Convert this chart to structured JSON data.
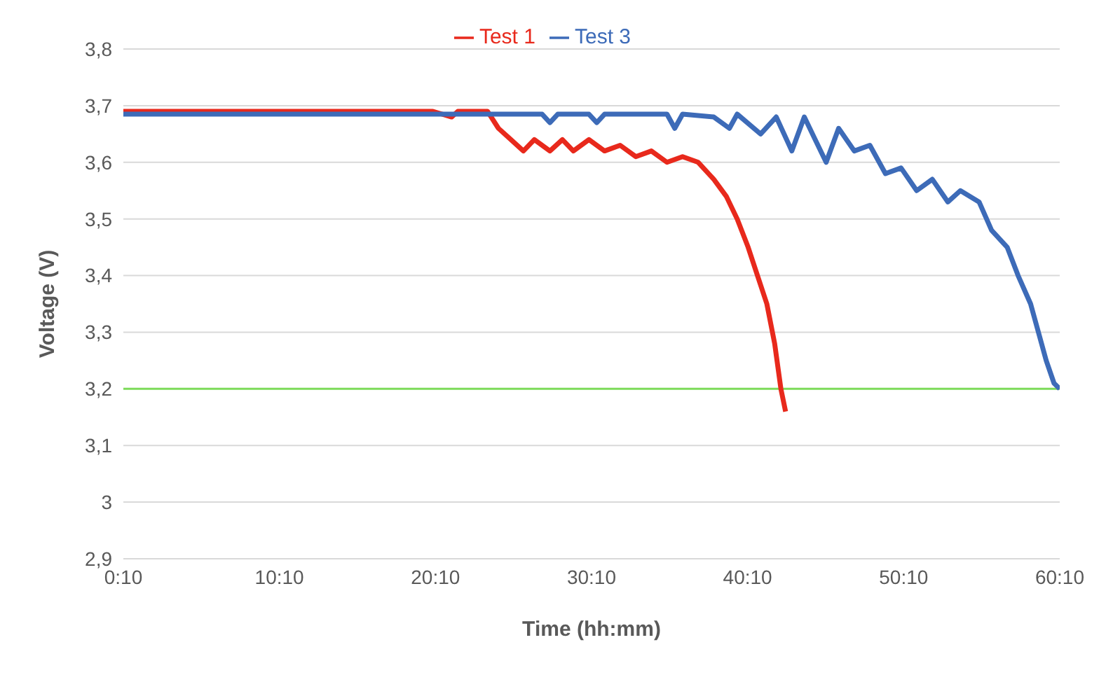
{
  "chart_data": {
    "type": "line",
    "xlabel": "Time (hh:mm)",
    "ylabel": "Voltage (V)",
    "xlim": [
      0.1667,
      60.1667
    ],
    "xticks": [
      {
        "value": 0.1667,
        "label": "0:10"
      },
      {
        "value": 10.1667,
        "label": "10:10"
      },
      {
        "value": 20.1667,
        "label": "20:10"
      },
      {
        "value": 30.1667,
        "label": "30:10"
      },
      {
        "value": 40.1667,
        "label": "40:10"
      },
      {
        "value": 50.1667,
        "label": "50:10"
      },
      {
        "value": 60.1667,
        "label": "60:10"
      }
    ],
    "ylim": [
      2.9,
      3.8
    ],
    "yticks": [
      {
        "value": 2.9,
        "label": "2,9"
      },
      {
        "value": 3,
        "label": "3"
      },
      {
        "value": 3.1,
        "label": "3,1"
      },
      {
        "value": 3.2,
        "label": "3,2"
      },
      {
        "value": 3.3,
        "label": "3,3"
      },
      {
        "value": 3.4,
        "label": "3,4"
      },
      {
        "value": 3.5,
        "label": "3,5"
      },
      {
        "value": 3.6,
        "label": "3,6"
      },
      {
        "value": 3.7,
        "label": "3,7"
      },
      {
        "value": 3.8,
        "label": "3,8"
      }
    ],
    "grid": "y",
    "legend": "top",
    "marker": "none",
    "line_style": "solid",
    "ref_lines": [
      {
        "axis": "y",
        "value": 3.2,
        "color": "#7ddb5a"
      }
    ],
    "series": [
      {
        "name": "Test 1",
        "color": "#e8291c",
        "x": [
          0.1667,
          20,
          21.2,
          21.6,
          23.5,
          24.2,
          25,
          25.8,
          26.5,
          27.5,
          28.3,
          29,
          30,
          31,
          32,
          33,
          34,
          35,
          36,
          37,
          38,
          38.8,
          39.5,
          40.2,
          40.8,
          41.4,
          41.9,
          42.3,
          42.6
        ],
        "values": [
          3.69,
          3.69,
          3.68,
          3.69,
          3.69,
          3.66,
          3.64,
          3.62,
          3.64,
          3.62,
          3.64,
          3.62,
          3.64,
          3.62,
          3.63,
          3.61,
          3.62,
          3.6,
          3.61,
          3.6,
          3.57,
          3.54,
          3.5,
          3.45,
          3.4,
          3.35,
          3.28,
          3.2,
          3.16
        ]
      },
      {
        "name": "Test 3",
        "color": "#3d6bb8",
        "x": [
          0.1667,
          27,
          27.5,
          28,
          30,
          30.5,
          31,
          35,
          35.5,
          36,
          38,
          39,
          39.5,
          41,
          42,
          43,
          43.8,
          44.5,
          45.2,
          46,
          47,
          48,
          49,
          50,
          51,
          52,
          53,
          53.8,
          55,
          55.8,
          56.8,
          57.5,
          58.3,
          58.8,
          59.3,
          59.8,
          60.1667
        ],
        "values": [
          3.685,
          3.685,
          3.67,
          3.685,
          3.685,
          3.67,
          3.685,
          3.685,
          3.66,
          3.685,
          3.68,
          3.66,
          3.685,
          3.65,
          3.68,
          3.62,
          3.68,
          3.64,
          3.6,
          3.66,
          3.62,
          3.63,
          3.58,
          3.59,
          3.55,
          3.57,
          3.53,
          3.55,
          3.53,
          3.48,
          3.45,
          3.4,
          3.35,
          3.3,
          3.25,
          3.21,
          3.2
        ]
      }
    ]
  }
}
